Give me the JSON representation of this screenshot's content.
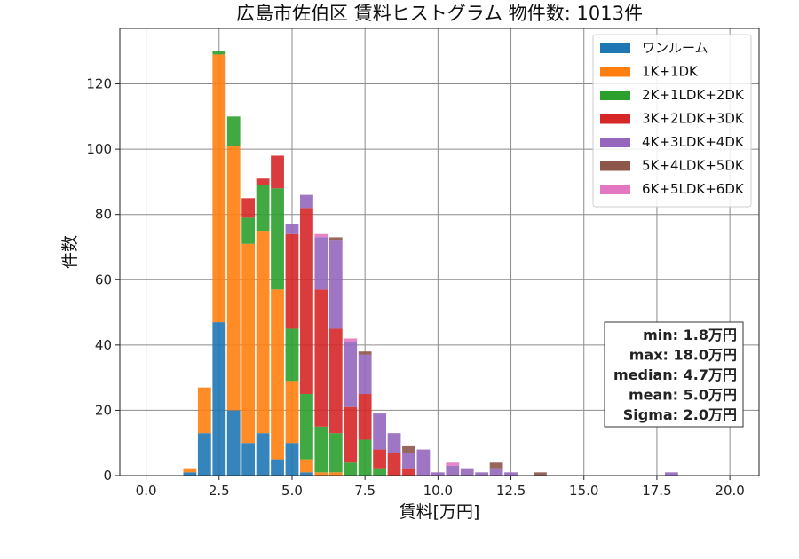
{
  "chart_data": {
    "type": "bar",
    "title": "広島市佐伯区 賃料ヒストグラム 物件数: 1013件",
    "xlabel": "賃料[万円]",
    "ylabel": "件数",
    "xlim": [
      -0.9,
      21.0
    ],
    "ylim": [
      0,
      137
    ],
    "x_ticks": [
      0.0,
      2.5,
      5.0,
      7.5,
      10.0,
      12.5,
      15.0,
      17.5,
      20.0
    ],
    "x_tick_labels": [
      "0.0",
      "2.5",
      "5.0",
      "7.5",
      "10.0",
      "12.5",
      "15.0",
      "17.5",
      "20.0"
    ],
    "y_ticks": [
      0,
      20,
      40,
      60,
      80,
      100,
      120
    ],
    "y_tick_labels": [
      "0",
      "20",
      "40",
      "60",
      "80",
      "100",
      "120"
    ],
    "grid": true,
    "stacked": true,
    "bin_width": 0.5,
    "bar_width": 0.45,
    "legend_position": "top-right",
    "x": [
      1.5,
      2.0,
      2.5,
      3.0,
      3.5,
      4.0,
      4.5,
      5.0,
      5.5,
      6.0,
      6.5,
      7.0,
      7.5,
      8.0,
      8.5,
      9.0,
      9.5,
      10.0,
      10.5,
      11.0,
      11.5,
      12.0,
      12.5,
      13.5,
      18.0
    ],
    "series": [
      {
        "name": "ワンルーム",
        "color": "#1f77b4",
        "values": [
          1,
          13,
          47,
          20,
          10,
          13,
          5,
          10,
          1,
          0,
          0,
          0,
          0,
          0,
          0,
          0,
          0,
          0,
          0,
          0,
          0,
          0,
          0,
          0,
          0
        ]
      },
      {
        "name": "1K+1DK",
        "color": "#ff7f0e",
        "values": [
          1,
          14,
          82,
          81,
          61,
          62,
          52,
          19,
          4,
          1,
          1,
          0,
          0,
          0,
          0,
          0,
          0,
          0,
          0,
          0,
          0,
          0,
          0,
          0,
          0
        ]
      },
      {
        "name": "2K+1LDK+2DK",
        "color": "#2ca02c",
        "values": [
          0,
          0,
          1,
          9,
          8,
          14,
          31,
          16,
          20,
          14,
          12,
          4,
          11,
          2,
          0,
          0,
          0,
          0,
          0,
          0,
          0,
          0,
          0,
          0,
          0
        ]
      },
      {
        "name": "3K+2LDK+3DK",
        "color": "#d62728",
        "values": [
          0,
          0,
          0,
          0,
          6,
          2,
          10,
          29,
          57,
          42,
          32,
          17,
          14,
          6,
          7,
          2,
          0,
          0,
          0,
          0,
          0,
          0,
          0,
          0,
          0
        ]
      },
      {
        "name": "4K+3LDK+4DK",
        "color": "#9467bd",
        "values": [
          0,
          0,
          0,
          0,
          0,
          0,
          0,
          3,
          4,
          16,
          27,
          20,
          12,
          11,
          6,
          5,
          8,
          1,
          3,
          2,
          1,
          2,
          1,
          0,
          1
        ]
      },
      {
        "name": "5K+4LDK+5DK",
        "color": "#8c564b",
        "values": [
          0,
          0,
          0,
          0,
          0,
          0,
          0,
          0,
          0,
          0,
          1,
          0,
          1,
          0,
          0,
          2,
          0,
          0,
          0,
          0,
          0,
          2,
          0,
          1,
          0
        ]
      },
      {
        "name": "6K+5LDK+6DK",
        "color": "#e377c2",
        "values": [
          0,
          0,
          0,
          0,
          0,
          0,
          0,
          0,
          0,
          1,
          0,
          1,
          0,
          0,
          0,
          0,
          0,
          0,
          1,
          0,
          0,
          0,
          0,
          0,
          0
        ]
      }
    ],
    "stats_box": [
      "min: 1.8万円",
      "max: 18.0万円",
      "median: 4.7万円",
      "mean: 5.0万円",
      "Sigma: 2.0万円"
    ]
  }
}
